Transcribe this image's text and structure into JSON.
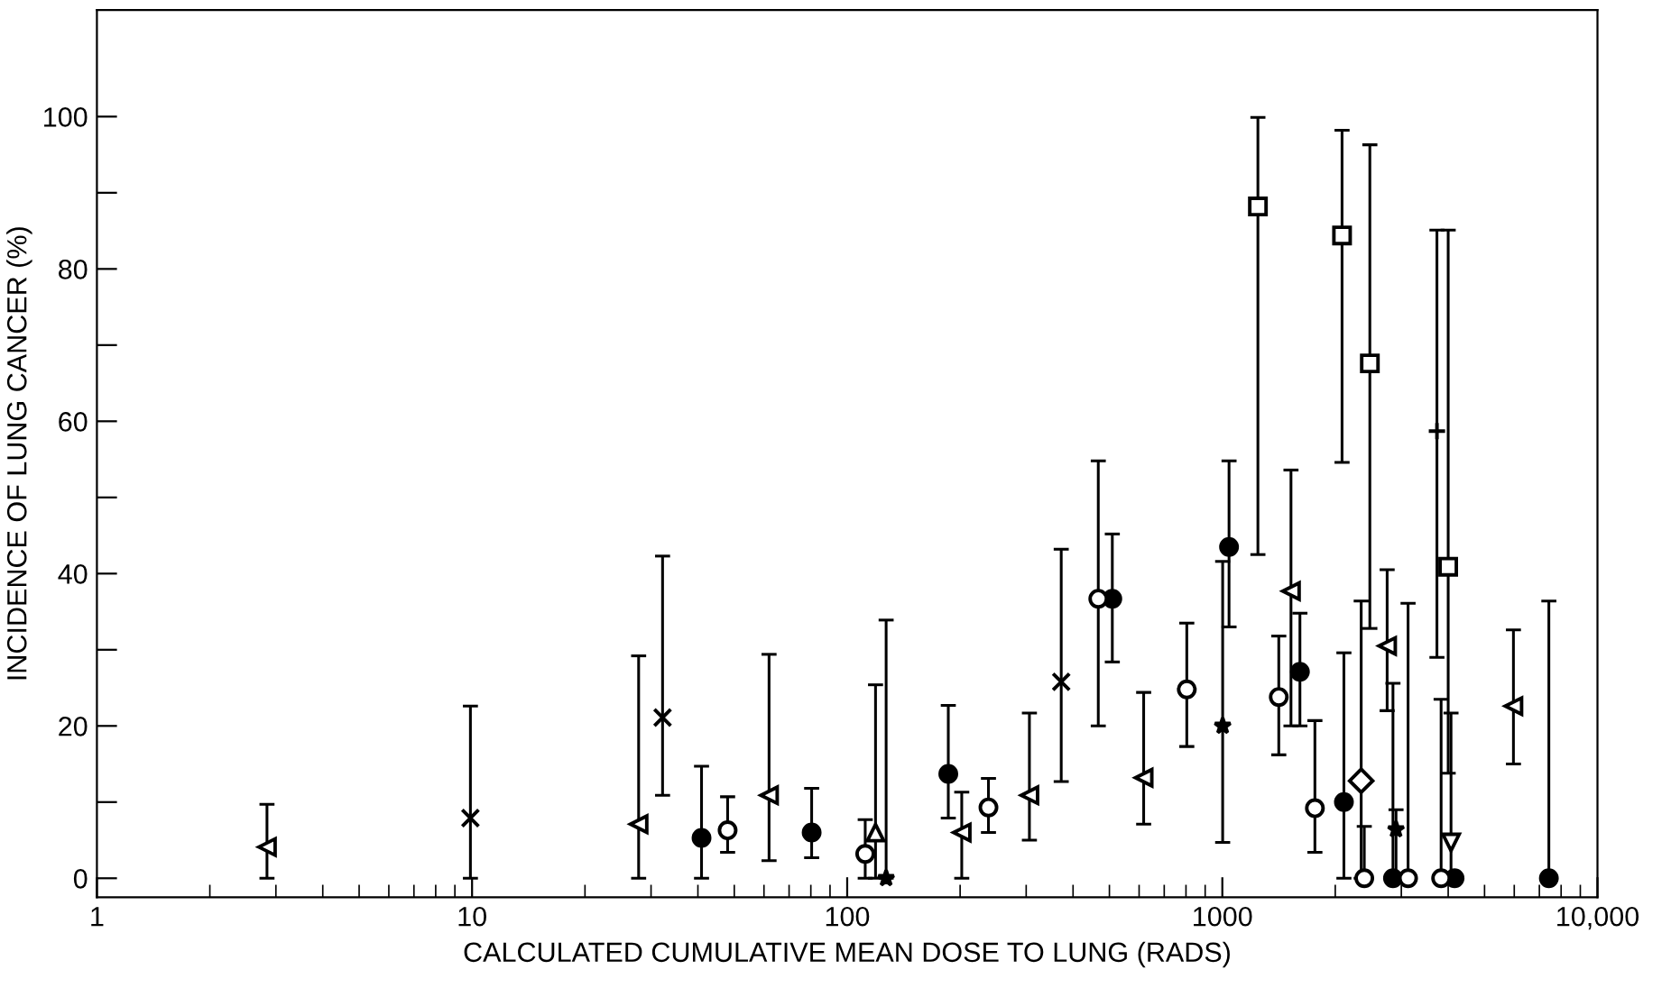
{
  "chart_data": {
    "type": "scatter",
    "xlabel": "CALCULATED CUMULATIVE MEAN DOSE TO LUNG (RADS)",
    "ylabel": "INCIDENCE OF LUNG CANCER (%)",
    "log": "x",
    "xlim": [
      1,
      10000
    ],
    "xticks": [
      1,
      10,
      100,
      1000,
      {
        "value": 10000,
        "label": "10,000"
      }
    ],
    "ylim": [
      -2.5,
      114
    ],
    "yticks": [
      0,
      {
        "value": 10,
        "label": null
      },
      20,
      {
        "value": 30,
        "label": null
      },
      40,
      {
        "value": 50,
        "label": null
      },
      60,
      {
        "value": 70,
        "label": null
      },
      80,
      {
        "value": 90,
        "label": null
      },
      100
    ],
    "series": [
      {
        "marker": "triangle_left",
        "color": "#000000",
        "x": [
          2.84,
          27.8,
          61.9,
          202,
          306,
          617,
          1524,
          2750,
          5970
        ],
        "values": [
          4.1,
          7.1,
          10.9,
          6.0,
          10.9,
          13.2,
          37.7,
          30.5,
          22.6
        ],
        "errors": [
          [
            0,
            9.7
          ],
          [
            0,
            29.2
          ],
          [
            2.3,
            29.4
          ],
          [
            0,
            11.3
          ],
          [
            5.0,
            21.7
          ],
          [
            7.1,
            24.4
          ],
          [
            20.0,
            53.6
          ],
          [
            22,
            40.5
          ],
          [
            15.0,
            32.6
          ]
        ]
      },
      {
        "marker": "triangle",
        "color": "#000000",
        "x": [
          119
        ],
        "values": [
          6.0
        ],
        "errors": [
          [
            0,
            25.4
          ]
        ]
      },
      {
        "marker": "triangle_down",
        "color": "#000000",
        "x": [
          4070
        ],
        "values": [
          4.7
        ],
        "errors": [
          [
            0,
            21.7
          ]
        ]
      },
      {
        "marker": "cross",
        "color": "#000000",
        "x": [
          9.9,
          32.2,
          372
        ],
        "values": [
          7.9,
          21.1,
          25.8
        ],
        "errors": [
          [
            0,
            22.6
          ],
          [
            10.9,
            42.3
          ],
          [
            12.7,
            43.2
          ]
        ]
      },
      {
        "marker": "circle_filled",
        "color": "#000000",
        "x": [
          40.9,
          80.4,
          186,
          509,
          1042,
          1610,
          2109,
          2850,
          4160,
          7420
        ],
        "values": [
          5.3,
          6.0,
          13.7,
          36.7,
          43.5,
          27.1,
          10.0,
          0,
          0,
          0
        ],
        "errors": [
          [
            0,
            14.7
          ],
          [
            2.7,
            11.8
          ],
          [
            7.9,
            22.7
          ],
          [
            28.4,
            45.2
          ],
          [
            33.0,
            54.8
          ],
          [
            20.0,
            34.8
          ],
          [
            0,
            29.6
          ],
          [
            0,
            25.6
          ],
          null,
          [
            0,
            36.4
          ]
        ]
      },
      {
        "marker": "circle",
        "color": "#000000",
        "x": [
          48,
          111.7,
          238,
          467,
          804,
          1414,
          1765,
          2390,
          3127,
          3830
        ],
        "values": [
          6.3,
          3.2,
          9.3,
          36.7,
          24.8,
          23.8,
          9.2,
          0,
          0,
          0
        ],
        "errors": [
          [
            3.4,
            10.7
          ],
          [
            0,
            7.7
          ],
          [
            6.0,
            13.1
          ],
          [
            20.0,
            54.8
          ],
          [
            17.3,
            33.5
          ],
          [
            16.2,
            31.8
          ],
          [
            3.4,
            20.7
          ],
          [
            0,
            6.8
          ],
          [
            0,
            36.1
          ],
          [
            0,
            23.5
          ]
        ]
      },
      {
        "marker": "square",
        "color": "#000000",
        "x": [
          1244,
          2085,
          2473,
          4000
        ],
        "values": [
          88.2,
          84.4,
          67.6,
          40.9
        ],
        "errors": [
          [
            42.5,
            99.9
          ],
          [
            54.6,
            98.2
          ],
          [
            32.8,
            96.3
          ],
          [
            13.8,
            85.1
          ]
        ]
      },
      {
        "marker": "diamond",
        "color": "#000000",
        "x": [
          2345
        ],
        "values": [
          12.8
        ],
        "errors": [
          [
            0,
            36.4
          ]
        ]
      },
      {
        "marker": "star",
        "color": "#000000",
        "x": [
          127,
          1002,
          2904
        ],
        "values": [
          0,
          20.0,
          6.4
        ],
        "errors": [
          [
            0,
            33.9
          ],
          [
            4.7,
            41.6
          ],
          [
            0,
            9.0
          ]
        ]
      },
      {
        "marker": "plus",
        "color": "#000000",
        "x": [
          3733
        ],
        "values": [
          58.7
        ],
        "errors": [
          [
            29.0,
            85.1
          ]
        ]
      }
    ]
  }
}
